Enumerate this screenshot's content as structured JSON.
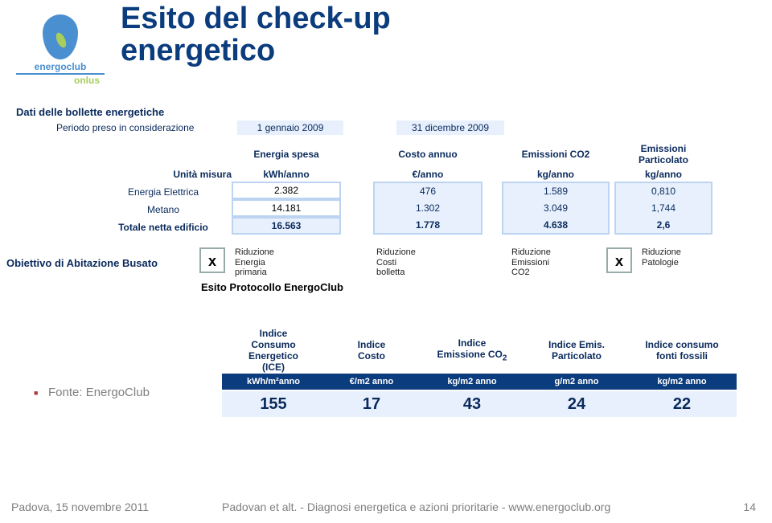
{
  "colors": {
    "title": "#0b3c7d",
    "dark_text": "#0a2a5c",
    "band_dark": "#0b3c7d",
    "band_light": "#e7f0fc",
    "border_light": "#bcd4f2",
    "grey": "#807e7e",
    "bullet": "#b33b3b",
    "logo_blue": "#4a8fcf",
    "logo_green": "#a7ce5d"
  },
  "logo": {
    "name": "energoclub",
    "sub": "onlus"
  },
  "title": {
    "line1": "Esito del check-up",
    "line2": "energetico"
  },
  "section": {
    "data_header": "Dati delle bollette energetiche",
    "period_label": "Periodo preso in considerazione",
    "period_start": "1 gennaio 2009",
    "period_end": "31 dicembre 2009"
  },
  "energy": {
    "headers": {
      "energia": "Energia spesa",
      "costo": "Costo annuo",
      "co2": "Emissioni CO2",
      "part_l1": "Emissioni",
      "part_l2": "Particolato"
    },
    "units": {
      "label": "Unità misura",
      "energia": "kWh/anno",
      "costo": "€/anno",
      "co2": "kg/anno",
      "part": "kg/anno"
    },
    "rows": [
      {
        "label": "Energia Elettrica",
        "energia": "2.382",
        "costo": "476",
        "co2": "1.589",
        "part": "0,810"
      },
      {
        "label": "Metano",
        "energia": "14.181",
        "costo": "1.302",
        "co2": "3.049",
        "part": "1,744"
      }
    ],
    "total": {
      "label": "Totale netta edificio",
      "energia": "16.563",
      "costo": "1.778",
      "co2": "4.638",
      "part": "2,6"
    }
  },
  "objective": {
    "label": "Obiettivo di Abitazione Busato",
    "items": [
      {
        "checked": "x",
        "l1": "Riduzione",
        "l2": "Energia",
        "l3": "primaria"
      },
      {
        "checked": "",
        "l1": "Riduzione",
        "l2": "Costi",
        "l3": "bolletta"
      },
      {
        "checked": "",
        "l1": "Riduzione",
        "l2": "Emissioni",
        "l3": "CO2"
      },
      {
        "checked": "x",
        "l1": "Riduzione",
        "l2": "Patologie",
        "l3": ""
      }
    ],
    "esito": "Esito Protocollo EnergoClub"
  },
  "indices": {
    "headers": [
      {
        "html": "Indice<br>Consumo<br>Energetico<br>(ICE)"
      },
      {
        "html": "Indice<br>Costo"
      },
      {
        "html": "Indice<br>Emissione CO<sub>2</sub>"
      },
      {
        "html": "Indice Emis.<br>Particolato"
      },
      {
        "html": "Indice consumo<br>fonti fossili"
      }
    ],
    "units": [
      "kWh/m²anno",
      "€/m2 anno",
      "kg/m2 anno",
      "g/m2 anno",
      "kg/m2 anno"
    ],
    "values": [
      "155",
      "17",
      "43",
      "24",
      "22"
    ]
  },
  "fonte": "Fonte: EnergoClub",
  "footer": {
    "left": "Padova, 15 novembre 2011",
    "mid": "Padovan et alt. - Diagnosi energetica e azioni prioritarie - www.energoclub.org",
    "page": "14"
  }
}
